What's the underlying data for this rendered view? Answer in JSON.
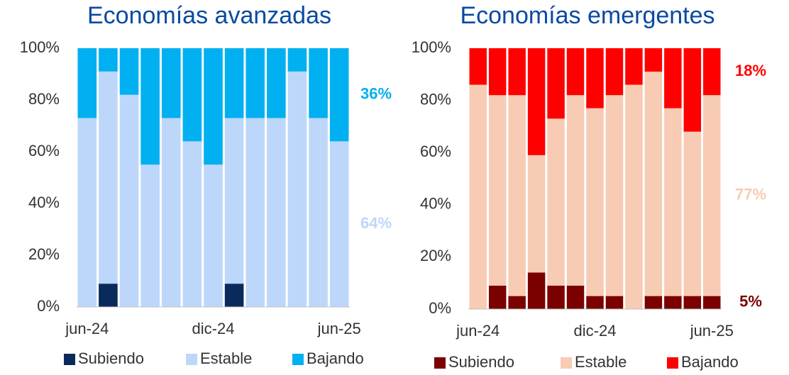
{
  "chart_data": [
    {
      "type": "stacked_bar",
      "title": "Economías avanzadas",
      "categories": [
        "jun-24",
        null,
        null,
        null,
        null,
        null,
        "dic-24",
        null,
        null,
        null,
        null,
        null,
        "jun-25"
      ],
      "series": [
        {
          "name": "Subiendo",
          "color": "#0b2a5c",
          "values": [
            0,
            9,
            0,
            0,
            0,
            0,
            0,
            9,
            0,
            0,
            0,
            0,
            0
          ]
        },
        {
          "name": "Estable",
          "color": "#bdd7fb",
          "values": [
            73,
            82,
            82,
            55,
            73,
            64,
            55,
            64,
            73,
            73,
            91,
            73,
            64
          ]
        },
        {
          "name": "Bajando",
          "color": "#00b0f0",
          "values": [
            27,
            9,
            18,
            45,
            27,
            36,
            45,
            27,
            27,
            27,
            9,
            27,
            36
          ]
        }
      ],
      "annotations": [
        {
          "text": "36%",
          "series": "Bajando"
        },
        {
          "text": "64%",
          "series": "Estable"
        }
      ],
      "ylim": [
        0,
        100
      ],
      "yticks": [
        {
          "value": 0,
          "label": "0%"
        },
        {
          "value": 20,
          "label": "20%"
        },
        {
          "value": 40,
          "label": "40%"
        },
        {
          "value": 60,
          "label": "60%"
        },
        {
          "value": 80,
          "label": "80%"
        },
        {
          "value": 100,
          "label": "100%"
        }
      ]
    },
    {
      "type": "stacked_bar",
      "title": "Economías emergentes",
      "categories": [
        "jun-24",
        null,
        null,
        null,
        null,
        null,
        "dic-24",
        null,
        null,
        null,
        null,
        null,
        "jun-25"
      ],
      "series": [
        {
          "name": "Subiendo",
          "color": "#7b0000",
          "values": [
            0,
            9,
            5,
            14,
            9,
            9,
            5,
            5,
            0,
            5,
            5,
            5,
            5
          ]
        },
        {
          "name": "Estable",
          "color": "#f8cbb4",
          "values": [
            86,
            73,
            77,
            45,
            64,
            73,
            72,
            77,
            86,
            86,
            72,
            63,
            77
          ]
        },
        {
          "name": "Bajando",
          "color": "#ff0000",
          "values": [
            14,
            18,
            18,
            41,
            27,
            18,
            23,
            18,
            14,
            9,
            23,
            32,
            18
          ]
        }
      ],
      "annotations": [
        {
          "text": "18%",
          "series": "Bajando"
        },
        {
          "text": "77%",
          "series": "Estable"
        },
        {
          "text": "5%",
          "series": "Subiendo"
        }
      ],
      "ylim": [
        0,
        100
      ],
      "yticks": [
        {
          "value": 0,
          "label": "0%"
        },
        {
          "value": 20,
          "label": "20%"
        },
        {
          "value": 40,
          "label": "40%"
        },
        {
          "value": 60,
          "label": "60%"
        },
        {
          "value": 80,
          "label": "80%"
        },
        {
          "value": 100,
          "label": "100%"
        }
      ]
    }
  ]
}
